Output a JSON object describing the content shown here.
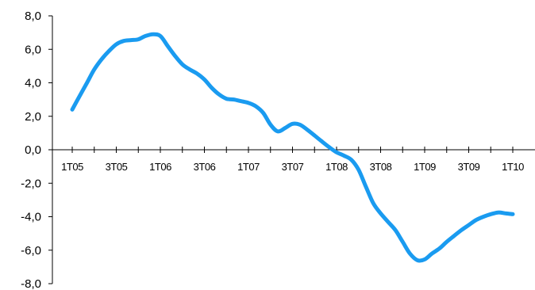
{
  "chart_data": {
    "type": "line",
    "categories": [
      "1T05",
      "",
      "3T05",
      "",
      "1T06",
      "",
      "3T06",
      "",
      "1T07",
      "",
      "3T07",
      "",
      "1T08",
      "",
      "3T08",
      "",
      "1T09",
      "",
      "3T09",
      "",
      "1T10"
    ],
    "x": [
      0,
      0.33,
      0.67,
      1,
      1.33,
      1.67,
      2,
      2.33,
      2.67,
      3,
      3.33,
      3.67,
      4,
      4.33,
      4.67,
      5,
      5.33,
      5.67,
      6,
      6.33,
      6.67,
      7,
      7.33,
      7.67,
      8,
      8.33,
      8.67,
      9,
      9.33,
      9.67,
      10,
      10.33,
      10.67,
      11,
      11.33,
      11.67,
      12,
      12.33,
      12.67,
      13,
      13.33,
      13.67,
      14,
      14.33,
      14.67,
      15,
      15.33,
      15.67,
      16,
      16.33,
      16.67,
      17,
      17.33,
      17.67,
      18,
      18.33,
      18.67,
      19,
      19.33,
      19.67,
      20
    ],
    "series": [
      {
        "values": [
          2.4,
          3.2,
          4.0,
          4.8,
          5.4,
          5.9,
          6.3,
          6.5,
          6.55,
          6.6,
          6.8,
          6.9,
          6.8,
          6.2,
          5.6,
          5.1,
          4.8,
          4.55,
          4.2,
          3.7,
          3.3,
          3.05,
          3.0,
          2.9,
          2.8,
          2.6,
          2.2,
          1.5,
          1.1,
          1.3,
          1.55,
          1.5,
          1.2,
          0.85,
          0.5,
          0.15,
          -0.15,
          -0.35,
          -0.6,
          -1.2,
          -2.2,
          -3.2,
          -3.8,
          -4.3,
          -4.8,
          -5.5,
          -6.2,
          -6.6,
          -6.55,
          -6.2,
          -5.9,
          -5.5,
          -5.15,
          -4.8,
          -4.5,
          -4.2,
          -4.0,
          -3.85,
          -3.75,
          -3.8,
          -3.85
        ],
        "color": "#1a9bf0"
      }
    ],
    "y_ticks": [
      "8,0",
      "6,0",
      "4,0",
      "2,0",
      "0,0",
      "-2,0",
      "-4,0",
      "-6,0",
      "-8,0"
    ],
    "ylim": [
      -8,
      8
    ],
    "title": "",
    "xlabel": "",
    "ylabel": "",
    "grid": false,
    "legend": "none"
  }
}
